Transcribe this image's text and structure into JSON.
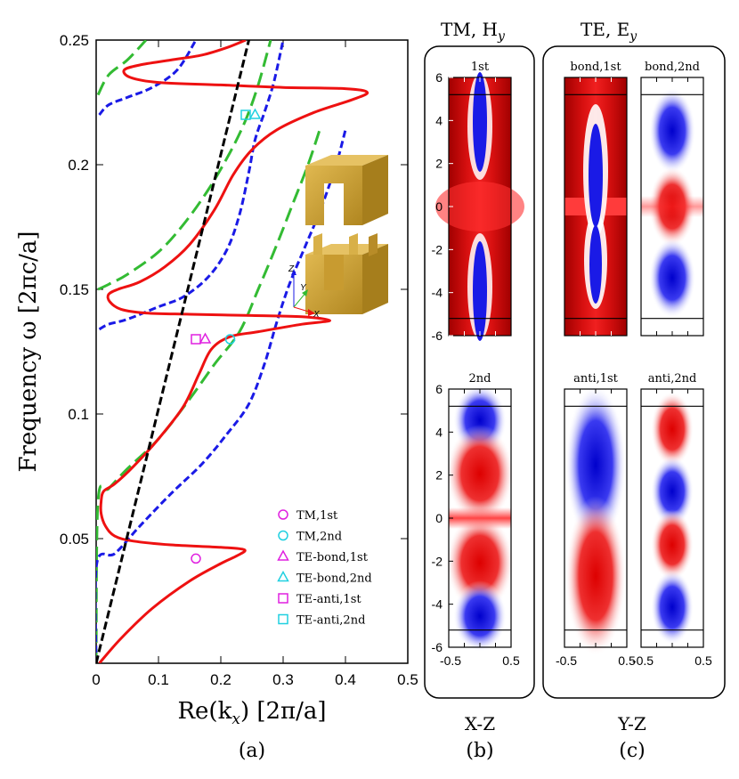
{
  "chart_data": [
    {
      "panel": "(a)",
      "type": "line",
      "xlabel": "Re(k_x) [2π/a]",
      "ylabel": "Frequency ω [2πc/a]",
      "xlim": [
        0,
        0.5
      ],
      "ylim": [
        0,
        0.25
      ],
      "xticks": [
        "0",
        "0.1",
        "0.2",
        "0.3",
        "0.4",
        "0.5"
      ],
      "yticks": [
        "0.05",
        "0.1",
        "0.15",
        "0.2",
        "0.25"
      ],
      "colors": {
        "red": "#ee1111",
        "blue": "#1a1ae6",
        "green": "#33bb33",
        "black": "#000000",
        "magenta": "#e020e0",
        "cyan": "#20d0e0"
      },
      "light_line": [
        [
          0,
          0
        ],
        [
          0.245,
          0.25
        ]
      ],
      "red_curve": [
        [
          0.005,
          0.0
        ],
        [
          0.04,
          0.01
        ],
        [
          0.09,
          0.022
        ],
        [
          0.15,
          0.033
        ],
        [
          0.2,
          0.04
        ],
        [
          0.225,
          0.043
        ],
        [
          0.238,
          0.0455
        ],
        [
          0.2,
          0.0465
        ],
        [
          0.12,
          0.0475
        ],
        [
          0.06,
          0.049
        ],
        [
          0.03,
          0.051
        ],
        [
          0.015,
          0.055
        ],
        [
          0.008,
          0.06
        ],
        [
          0.008,
          0.065
        ],
        [
          0.012,
          0.069
        ],
        [
          0.03,
          0.072
        ],
        [
          0.06,
          0.079
        ],
        [
          0.1,
          0.09
        ],
        [
          0.14,
          0.103
        ],
        [
          0.165,
          0.116
        ],
        [
          0.185,
          0.126
        ],
        [
          0.215,
          0.131
        ],
        [
          0.26,
          0.133
        ],
        [
          0.33,
          0.136
        ],
        [
          0.375,
          0.1375
        ],
        [
          0.33,
          0.139
        ],
        [
          0.25,
          0.1395
        ],
        [
          0.15,
          0.14
        ],
        [
          0.08,
          0.1405
        ],
        [
          0.04,
          0.142
        ],
        [
          0.022,
          0.145
        ],
        [
          0.02,
          0.148
        ],
        [
          0.035,
          0.15
        ],
        [
          0.07,
          0.153
        ],
        [
          0.11,
          0.159
        ],
        [
          0.15,
          0.168
        ],
        [
          0.19,
          0.182
        ],
        [
          0.22,
          0.196
        ],
        [
          0.25,
          0.206
        ],
        [
          0.29,
          0.214
        ],
        [
          0.35,
          0.221
        ],
        [
          0.41,
          0.226
        ],
        [
          0.435,
          0.229
        ],
        [
          0.4,
          0.2305
        ],
        [
          0.3,
          0.231
        ],
        [
          0.2,
          0.232
        ],
        [
          0.1,
          0.233
        ],
        [
          0.055,
          0.235
        ],
        [
          0.045,
          0.238
        ],
        [
          0.07,
          0.24
        ],
        [
          0.12,
          0.242
        ],
        [
          0.17,
          0.244
        ],
        [
          0.21,
          0.247
        ],
        [
          0.24,
          0.25
        ]
      ],
      "blue_curve": [
        [
          0.0,
          0.0
        ],
        [
          0.005,
          0.04
        ],
        [
          0.02,
          0.044
        ],
        [
          0.06,
          0.054
        ],
        [
          0.1,
          0.066
        ],
        [
          0.15,
          0.08
        ],
        [
          0.2,
          0.095
        ],
        [
          0.24,
          0.108
        ],
        [
          0.26,
          0.118
        ],
        [
          0.28,
          0.126
        ],
        [
          0.3,
          0.132
        ],
        [
          0.33,
          0.14
        ],
        [
          0.37,
          0.15
        ],
        [
          0.41,
          0.162
        ],
        [
          0.44,
          0.17
        ],
        [
          0.34,
          0.172
        ],
        [
          0.32,
          0.186
        ],
        [
          0.31,
          0.2
        ],
        [
          0.28,
          0.213
        ],
        [
          0.24,
          0.222
        ],
        [
          0.17,
          0.227
        ],
        [
          0.1,
          0.229
        ],
        [
          0.04,
          0.229
        ],
        [
          0.02,
          0.228
        ],
        [
          0.015,
          0.225
        ]
      ],
      "blue_curve_parts": [
        [
          [
            0.0,
            0.0
          ],
          [
            0.001,
            0.04
          ],
          [
            0.03,
            0.044
          ],
          [
            0.07,
            0.055
          ],
          [
            0.12,
            0.068
          ],
          [
            0.17,
            0.08
          ],
          [
            0.21,
            0.092
          ],
          [
            0.245,
            0.104
          ],
          [
            0.27,
            0.12
          ],
          [
            0.29,
            0.137
          ],
          [
            0.31,
            0.152
          ],
          [
            0.335,
            0.167
          ],
          [
            0.36,
            0.182
          ],
          [
            0.385,
            0.2
          ],
          [
            0.4,
            0.214
          ]
        ],
        [
          [
            0.005,
            0.134
          ],
          [
            0.02,
            0.136
          ],
          [
            0.05,
            0.138
          ],
          [
            0.1,
            0.143
          ],
          [
            0.14,
            0.147
          ],
          [
            0.18,
            0.155
          ],
          [
            0.21,
            0.166
          ],
          [
            0.23,
            0.18
          ],
          [
            0.245,
            0.197
          ],
          [
            0.255,
            0.21
          ],
          [
            0.27,
            0.221
          ],
          [
            0.285,
            0.233
          ],
          [
            0.3,
            0.25
          ]
        ],
        [
          [
            0.005,
            0.22
          ],
          [
            0.02,
            0.224
          ],
          [
            0.05,
            0.227
          ],
          [
            0.09,
            0.231
          ],
          [
            0.13,
            0.238
          ],
          [
            0.16,
            0.25
          ]
        ]
      ],
      "green_curve_parts": [
        [
          [
            0.0,
            0.0
          ],
          [
            0.003,
            0.065
          ],
          [
            0.02,
            0.07
          ],
          [
            0.05,
            0.078
          ],
          [
            0.1,
            0.09
          ],
          [
            0.15,
            0.106
          ],
          [
            0.19,
            0.12
          ],
          [
            0.23,
            0.133
          ],
          [
            0.26,
            0.15
          ],
          [
            0.29,
            0.168
          ],
          [
            0.315,
            0.184
          ],
          [
            0.34,
            0.2
          ],
          [
            0.36,
            0.215
          ]
        ],
        [
          [
            0.003,
            0.15
          ],
          [
            0.02,
            0.152
          ],
          [
            0.05,
            0.156
          ],
          [
            0.1,
            0.165
          ],
          [
            0.14,
            0.176
          ],
          [
            0.18,
            0.19
          ],
          [
            0.215,
            0.205
          ],
          [
            0.24,
            0.218
          ],
          [
            0.26,
            0.232
          ],
          [
            0.28,
            0.25
          ]
        ],
        [
          [
            0.003,
            0.228
          ],
          [
            0.02,
            0.236
          ],
          [
            0.05,
            0.242
          ],
          [
            0.08,
            0.25
          ]
        ]
      ],
      "markers": [
        {
          "name": "TM,1st",
          "shape": "circle",
          "color": "#e020e0",
          "x": 0.16,
          "y": 0.042
        },
        {
          "name": "TM,2nd",
          "shape": "circle",
          "color": "#20d0e0",
          "x": 0.215,
          "y": 0.13
        },
        {
          "name": "TE-bond,1st",
          "shape": "triangle",
          "color": "#e020e0",
          "x": 0.175,
          "y": 0.13
        },
        {
          "name": "TE-bond,2nd",
          "shape": "triangle",
          "color": "#20d0e0",
          "x": 0.255,
          "y": 0.22
        },
        {
          "name": "TE-anti,1st",
          "shape": "square",
          "color": "#e020e0",
          "x": 0.16,
          "y": 0.13
        },
        {
          "name": "TE-anti,2nd",
          "shape": "square",
          "color": "#20d0e0",
          "x": 0.24,
          "y": 0.22
        }
      ],
      "legend": [
        "TM,1st",
        "TM,2nd",
        "TE-bond,1st",
        "TE-bond,2nd",
        "TE-anti,1st",
        "TE-anti,2nd"
      ],
      "legend_position": "bottom-right",
      "axes_inset": {
        "z": "Z",
        "y": "Y",
        "x": "X"
      }
    },
    {
      "panel": "(b)",
      "type": "heatmap",
      "title": "TM, Hy",
      "plane": "X-Z",
      "subplots": [
        "1st",
        "2nd"
      ],
      "yticks": [
        "6",
        "4",
        "2",
        "0",
        "-2",
        "-4",
        "-6"
      ],
      "xticks": [
        "-0.5",
        "0.5"
      ]
    },
    {
      "panel": "(c)",
      "type": "heatmap",
      "title": "TE, Ey",
      "plane": "Y-Z",
      "subplots": [
        "bond,1st",
        "bond,2nd",
        "anti,1st",
        "anti,2nd"
      ],
      "xticks": [
        "-0.5",
        "0.5",
        "-0.5",
        "0.5"
      ]
    }
  ],
  "labels": {
    "panel_a": "(a)",
    "panel_b": "(b)",
    "panel_c": "(c)",
    "xz": "X-Z",
    "yz": "Y-Z",
    "title_tm": "TM, H",
    "title_tm_sub": "y",
    "title_te": "TE, E",
    "title_te_sub": "y",
    "ylabel_main": "Frequency ω ",
    "ylabel_units": "[2πc/a]",
    "xlabel_main": "Re(k",
    "xlabel_sub": "x",
    "xlabel_units": ") [2π/a]"
  }
}
